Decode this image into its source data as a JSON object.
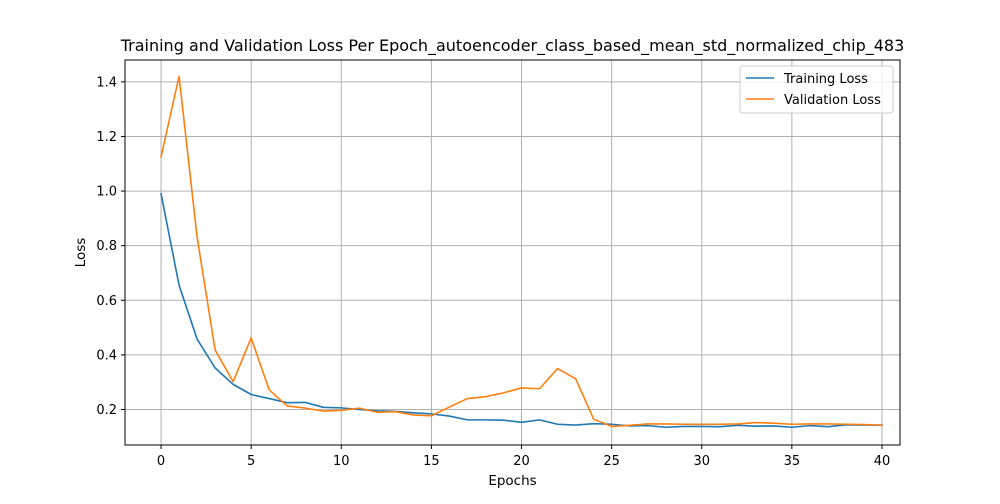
{
  "chart_data": {
    "type": "line",
    "title": "Training and Validation Loss Per Epoch_autoencoder_class_based_mean_std_normalized_chip_483",
    "xlabel": "Epochs",
    "ylabel": "Loss",
    "xlim": [
      -2,
      41
    ],
    "ylim": [
      0.07,
      1.48
    ],
    "xticks": [
      0,
      5,
      10,
      15,
      20,
      25,
      30,
      35,
      40
    ],
    "xtick_labels": [
      "0",
      "5",
      "10",
      "15",
      "20",
      "25",
      "30",
      "35",
      "40"
    ],
    "yticks": [
      0.2,
      0.4,
      0.6,
      0.8,
      1.0,
      1.2,
      1.4
    ],
    "ytick_labels": [
      "0.2",
      "0.4",
      "0.6",
      "0.8",
      "1.0",
      "1.2",
      "1.4"
    ],
    "grid": true,
    "legend": {
      "position": "top-right"
    },
    "x": [
      0,
      1,
      2,
      3,
      4,
      5,
      6,
      7,
      8,
      9,
      10,
      11,
      12,
      13,
      14,
      15,
      16,
      17,
      18,
      19,
      20,
      21,
      22,
      23,
      24,
      25,
      26,
      27,
      28,
      29,
      30,
      31,
      32,
      33,
      34,
      35,
      36,
      37,
      38,
      39,
      40
    ],
    "series": [
      {
        "name": "Training Loss",
        "color": "#1f77b4",
        "values": [
          0.99,
          0.655,
          0.458,
          0.352,
          0.292,
          0.255,
          0.24,
          0.225,
          0.226,
          0.208,
          0.206,
          0.2,
          0.195,
          0.193,
          0.188,
          0.184,
          0.176,
          0.162,
          0.162,
          0.161,
          0.153,
          0.162,
          0.146,
          0.143,
          0.148,
          0.146,
          0.14,
          0.141,
          0.135,
          0.138,
          0.138,
          0.137,
          0.142,
          0.139,
          0.14,
          0.135,
          0.141,
          0.137,
          0.144,
          0.143,
          0.143
        ]
      },
      {
        "name": "Validation Loss",
        "color": "#ff7f0e",
        "values": [
          1.125,
          1.42,
          0.832,
          0.418,
          0.302,
          0.462,
          0.272,
          0.213,
          0.205,
          0.194,
          0.197,
          0.205,
          0.19,
          0.192,
          0.18,
          0.177,
          0.209,
          0.24,
          0.247,
          0.261,
          0.279,
          0.276,
          0.35,
          0.313,
          0.165,
          0.138,
          0.142,
          0.147,
          0.147,
          0.146,
          0.146,
          0.146,
          0.147,
          0.152,
          0.15,
          0.146,
          0.147,
          0.147,
          0.146,
          0.145,
          0.142
        ]
      }
    ]
  }
}
